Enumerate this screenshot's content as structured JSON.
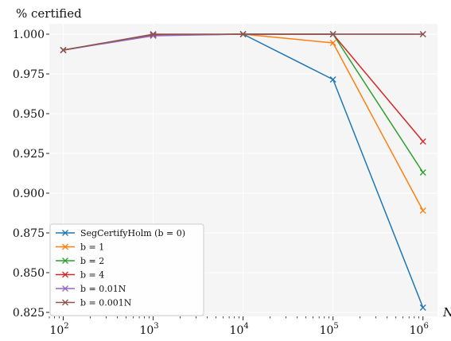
{
  "chart_data": {
    "type": "line",
    "ylabel": "% certified",
    "xlabel": "N",
    "xscale": "log",
    "xlim": [
      70,
      1450000
    ],
    "ylim": [
      0.8225,
      1.0065
    ],
    "x": [
      100,
      1000,
      10000,
      100000,
      1000000
    ],
    "x_tick_labels": [
      {
        "base": "10",
        "exp": "2"
      },
      {
        "base": "10",
        "exp": "3"
      },
      {
        "base": "10",
        "exp": "4"
      },
      {
        "base": "10",
        "exp": "5"
      },
      {
        "base": "10",
        "exp": "6"
      }
    ],
    "yticks": [
      0.825,
      0.85,
      0.875,
      0.9,
      0.925,
      0.95,
      0.975,
      1.0
    ],
    "y_tick_labels": [
      "0.825",
      "0.850",
      "0.875",
      "0.900",
      "0.925",
      "0.950",
      "0.975",
      "1.000"
    ],
    "grid": true,
    "legend_position": "lower-left",
    "series": [
      {
        "name": "SegCertifyHolm (b = 0)",
        "color": "#1f77b4",
        "values": [
          0.99,
          0.9995,
          1.0,
          0.9715,
          0.828
        ]
      },
      {
        "name": "b = 1",
        "color": "#ff7f0e",
        "values": [
          0.99,
          0.9995,
          1.0,
          0.9945,
          0.889
        ]
      },
      {
        "name": "b = 2",
        "color": "#2ca02c",
        "values": [
          0.99,
          0.9995,
          1.0,
          1.0,
          0.913
        ]
      },
      {
        "name": "b = 4",
        "color": "#d62728",
        "values": [
          0.99,
          0.9995,
          1.0,
          1.0,
          0.9325
        ]
      },
      {
        "name": "b = 0.01N",
        "color": "#9467bd",
        "values": [
          0.99,
          0.999,
          1.0,
          1.0,
          1.0
        ]
      },
      {
        "name": "b = 0.001N",
        "color": "#8c564b",
        "values": [
          0.99,
          1.0,
          1.0,
          1.0,
          1.0
        ]
      }
    ]
  }
}
